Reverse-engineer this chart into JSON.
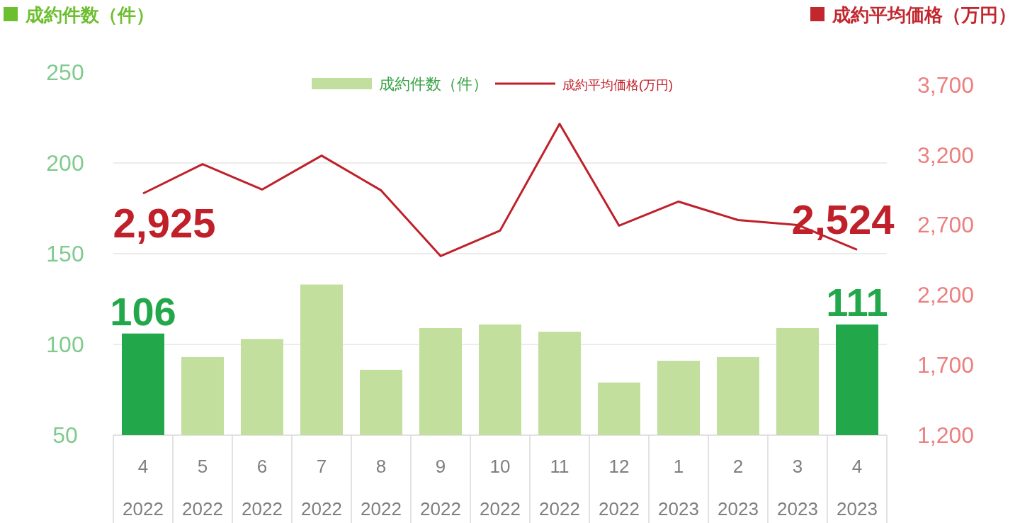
{
  "chart_data": {
    "type": "bar",
    "ylabel": "成約件数（件）",
    "y2label": "成約平均価格（万円）",
    "categories": [
      "4\n2022",
      "5\n2022",
      "6\n2022",
      "7\n2022",
      "8\n2022",
      "9\n2022",
      "10\n2022",
      "11\n2022",
      "12\n2022",
      "1\n2023",
      "2\n2023",
      "3\n2023",
      "4\n2023"
    ],
    "ylim": [
      50,
      250
    ],
    "yticks": [
      50,
      100,
      150,
      200,
      250
    ],
    "y2lim": [
      1200,
      3790
    ],
    "y2ticks": [
      {
        "value": 1200,
        "label": "1,200"
      },
      {
        "value": 1700,
        "label": "1,700"
      },
      {
        "value": 2200,
        "label": "2,200"
      },
      {
        "value": 2700,
        "label": "2,700"
      },
      {
        "value": 3200,
        "label": "3,200"
      },
      {
        "value": 3700,
        "label": "3,700"
      }
    ],
    "grid": "y",
    "legend": "top",
    "series": [
      {
        "name": "成約件数（件）",
        "color": "#c2df9e",
        "colors": [
          "#22a84a",
          "#c2df9e",
          "#c2df9e",
          "#c2df9e",
          "#c2df9e",
          "#c2df9e",
          "#c2df9e",
          "#c2df9e",
          "#c2df9e",
          "#c2df9e",
          "#c2df9e",
          "#c2df9e",
          "#22a84a"
        ],
        "values": [
          106,
          93,
          103,
          133,
          86,
          109,
          111,
          107,
          79,
          91,
          93,
          109,
          111
        ],
        "value_labels": [
          "106",
          null,
          null,
          null,
          null,
          null,
          null,
          null,
          null,
          null,
          null,
          null,
          "111"
        ]
      },
      {
        "name": "成約平均価格(万円)",
        "type": "line",
        "axis": "y2",
        "color": "#c0202a",
        "values": [
          2925,
          3134,
          2953,
          3195,
          2947,
          2478,
          2660,
          3422,
          2695,
          2867,
          2735,
          2700,
          2524
        ],
        "value_labels": [
          "2,925",
          null,
          null,
          null,
          null,
          null,
          null,
          null,
          null,
          null,
          null,
          null,
          "2,524"
        ]
      }
    ]
  }
}
